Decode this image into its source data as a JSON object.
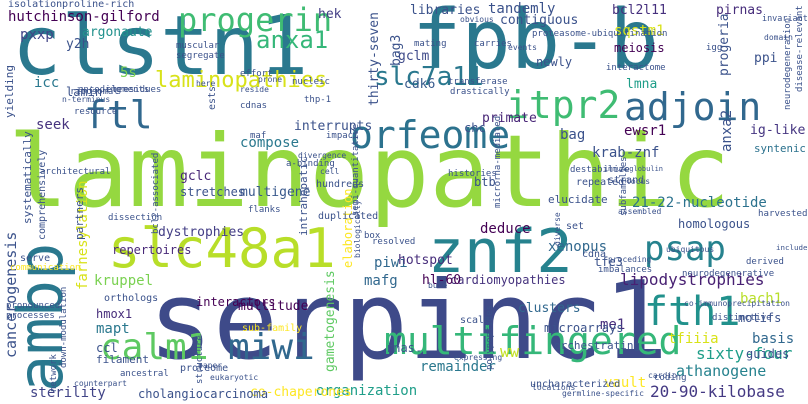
{
  "words": [
    {
      "text": "laminopathic",
      "color": "#95d840"
    },
    {
      "text": "serpinc1",
      "color": "#3e4a89"
    },
    {
      "text": "clstn1",
      "color": "#2a788e"
    },
    {
      "text": "fpb-b",
      "color": "#2a788e"
    },
    {
      "text": "slc48a1",
      "color": "#b8de29"
    },
    {
      "text": "znf2",
      "color": "#26828e"
    },
    {
      "text": "ambp",
      "color": "#2a788e"
    },
    {
      "text": "multifingered",
      "color": "#35b779"
    },
    {
      "text": "adjoin",
      "color": "#31688e"
    },
    {
      "text": "orfeome",
      "color": "#2c728e"
    },
    {
      "text": "itpr2",
      "color": "#3fbc73"
    },
    {
      "text": "ftl",
      "color": "#31688e"
    },
    {
      "text": "fth1",
      "color": "#21918c"
    },
    {
      "text": "calm1",
      "color": "#5ec962"
    },
    {
      "text": "miwi",
      "color": "#31688e"
    },
    {
      "text": "psap",
      "color": "#26828e"
    },
    {
      "text": "progerin",
      "color": "#3fbc73"
    },
    {
      "text": "anxa1",
      "color": "#35b779"
    },
    {
      "text": "laminopathies",
      "color": "#d8e219"
    },
    {
      "text": "slc7a11",
      "color": "#2a788e"
    },
    {
      "text": "hutchinson-gilford",
      "color": "#440154"
    },
    {
      "text": "argonaute",
      "color": "#21918c"
    },
    {
      "text": "cancerogenesis",
      "color": "#3b528b"
    },
    {
      "text": "farnesylation",
      "color": "#d8e219"
    },
    {
      "text": "lipodystrophies",
      "color": "#482173"
    },
    {
      "text": "sixty-four",
      "color": "#1f9e89"
    },
    {
      "text": "athanogene",
      "color": "#26828e"
    },
    {
      "text": "20-90-kilobase",
      "color": "#443983"
    },
    {
      "text": "21-22-nucleotide",
      "color": "#2c728e"
    },
    {
      "text": "dystrophies",
      "color": "#433e85"
    },
    {
      "text": "repertoires",
      "color": "#482878"
    },
    {
      "text": "remainder",
      "color": "#2a788e"
    },
    {
      "text": "organization",
      "color": "#1f9e89"
    },
    {
      "text": "co-chaperones",
      "color": "#fde725"
    },
    {
      "text": "cholangiocarcinoma",
      "color": "#3b528b"
    },
    {
      "text": "gametogenesis",
      "color": "#5ec962"
    },
    {
      "text": "sterility",
      "color": "#414487"
    },
    {
      "text": "kruppel",
      "color": "#7ad151"
    },
    {
      "text": "hmox1",
      "color": "#472d7b"
    },
    {
      "text": "mapt",
      "color": "#2a788e"
    },
    {
      "text": "ccl",
      "color": "#3b528b"
    },
    {
      "text": "mafg",
      "color": "#31688e"
    },
    {
      "text": "piwi",
      "color": "#31688e"
    },
    {
      "text": "xenopus",
      "color": "#31688e"
    },
    {
      "text": "deduce",
      "color": "#440154"
    },
    {
      "text": "cardiomyopathies",
      "color": "#46337e"
    },
    {
      "text": "vault",
      "color": "#fde725"
    },
    {
      "text": "me1",
      "color": "#472d7b"
    },
    {
      "text": "clusters",
      "color": "#31688e"
    },
    {
      "text": "bach1",
      "color": "#b8de29"
    },
    {
      "text": "tfiiia",
      "color": "#d8e219"
    },
    {
      "text": "basis",
      "color": "#31688e"
    },
    {
      "text": "tandemly",
      "color": "#3b528b"
    },
    {
      "text": "gclm",
      "color": "#3e4a89"
    },
    {
      "text": "cdk6",
      "color": "#375a8c"
    },
    {
      "text": "bcl2l11",
      "color": "#46307e"
    },
    {
      "text": "pirnas",
      "color": "#472d7b"
    },
    {
      "text": "sqstm1",
      "color": "#d8e219"
    },
    {
      "text": "meiosis",
      "color": "#440154"
    },
    {
      "text": "lmna",
      "color": "#1f9e89"
    },
    {
      "text": "ewsr1",
      "color": "#440154"
    },
    {
      "text": "krab-znf",
      "color": "#3b528b"
    },
    {
      "text": "ig-like",
      "color": "#453581"
    },
    {
      "text": "syntenic",
      "color": "#2c728e"
    },
    {
      "text": "compose",
      "color": "#2a788e"
    },
    {
      "text": "multigene",
      "color": "#38588c"
    },
    {
      "text": "bag",
      "color": "#3b528b"
    },
    {
      "text": "primate",
      "color": "#482677"
    },
    {
      "text": "seek",
      "color": "#46337e"
    },
    {
      "text": "gclc",
      "color": "#482878"
    },
    {
      "text": "stretches",
      "color": "#3b528b"
    },
    {
      "text": "icc",
      "color": "#2a788e"
    },
    {
      "text": "5s",
      "color": "#7ad151"
    },
    {
      "text": "y2h",
      "color": "#3b528b"
    },
    {
      "text": "pxxp",
      "color": "#414487"
    },
    {
      "text": "hek",
      "color": "#433e85"
    },
    {
      "text": "bag3",
      "color": "#3b528b"
    },
    {
      "text": "thirty-seven",
      "color": "#3b528b"
    },
    {
      "text": "libraries",
      "color": "#3b528b"
    },
    {
      "text": "contiguous",
      "color": "#3b528b"
    },
    {
      "text": "homologous",
      "color": "#3b528b"
    },
    {
      "text": "anxa2",
      "color": "#3b528b"
    },
    {
      "text": "hotspot",
      "color": "#472d7b"
    },
    {
      "text": "hl-60",
      "color": "#440154"
    },
    {
      "text": "microarrays",
      "color": "#3b528b"
    },
    {
      "text": "multitude",
      "color": "#440154"
    },
    {
      "text": "interactors",
      "color": "#440154"
    },
    {
      "text": "rnas",
      "color": "#3b528b"
    },
    {
      "text": "ww",
      "color": "#c2df23"
    },
    {
      "text": "progeria",
      "color": "#3b528b"
    },
    {
      "text": "ppi",
      "color": "#3b528b"
    },
    {
      "text": "btb",
      "color": "#3b528b"
    },
    {
      "text": "lamin",
      "color": "#3b528b"
    },
    {
      "text": "newly",
      "color": "#3b528b"
    },
    {
      "text": "interrupts",
      "color": "#3b528b"
    },
    {
      "text": "elaboration",
      "color": "#fde725"
    },
    {
      "text": "chc",
      "color": "#3b528b"
    },
    {
      "text": "tfe3",
      "color": "#3b528b"
    },
    {
      "text": "motifs",
      "color": "#3b528b"
    },
    {
      "text": "guides",
      "color": "#3b528b"
    },
    {
      "text": "orchestrating",
      "color": "#3b528b"
    },
    {
      "text": "proteasome-ubiquitination",
      "color": "#3b528b"
    },
    {
      "text": "isolation",
      "color": "#3b528b"
    },
    {
      "text": "proline-rich",
      "color": "#3b528b"
    },
    {
      "text": "elements",
      "color": "#3b528b"
    },
    {
      "text": "encoding",
      "color": "#3b528b"
    },
    {
      "text": "harvested",
      "color": "#3b528b"
    },
    {
      "text": "intrahepatic",
      "color": "#3b528b"
    },
    {
      "text": "partners",
      "color": "#3b528b"
    },
    {
      "text": "architectural",
      "color": "#3b528b"
    },
    {
      "text": "filament",
      "color": "#3b528b"
    },
    {
      "text": "sub-family",
      "color": "#fde725"
    },
    {
      "text": "uncharacterized",
      "color": "#3b528b"
    },
    {
      "text": "scale",
      "color": "#3b528b"
    },
    {
      "text": "elucidate",
      "color": "#3b528b"
    },
    {
      "text": "repeated",
      "color": "#3b528b"
    },
    {
      "text": "strand",
      "color": "#3b528b"
    },
    {
      "text": "histories",
      "color": "#3b528b"
    },
    {
      "text": "hundreds",
      "color": "#3b528b"
    },
    {
      "text": "set",
      "color": "#3b528b"
    },
    {
      "text": "cdna",
      "color": "#3b528b"
    },
    {
      "text": "duplicated",
      "color": "#3b528b"
    },
    {
      "text": "resolved",
      "color": "#3b528b"
    },
    {
      "text": "systematically",
      "color": "#3b528b"
    },
    {
      "text": "comprehensively",
      "color": "#3b528b"
    },
    {
      "text": "serve",
      "color": "#3b528b"
    },
    {
      "text": "orthologs",
      "color": "#3b528b"
    },
    {
      "text": "proteome",
      "color": "#3b528b"
    },
    {
      "text": "ancestral",
      "color": "#3b528b"
    },
    {
      "text": "coding",
      "color": "#3b528b"
    },
    {
      "text": "derived",
      "color": "#3b528b"
    },
    {
      "text": "communication",
      "color": "#fde725"
    },
    {
      "text": "structure",
      "color": "#3b528b"
    },
    {
      "text": "polypeptides",
      "color": "#3b528b"
    },
    {
      "text": "transferase",
      "color": "#3b528b"
    },
    {
      "text": "drastically",
      "color": "#3b528b"
    },
    {
      "text": "carries",
      "color": "#3b528b"
    },
    {
      "text": "mating",
      "color": "#3b528b"
    },
    {
      "text": "events",
      "color": "#3b528b"
    },
    {
      "text": "interactome",
      "color": "#3b528b"
    },
    {
      "text": "neurodegeneration",
      "color": "#3b528b"
    },
    {
      "text": "disease-relevant",
      "color": "#3b528b"
    },
    {
      "text": "invariant",
      "color": "#3b528b"
    },
    {
      "text": "obvious",
      "color": "#3b528b"
    },
    {
      "text": "segregate",
      "color": "#3b528b"
    },
    {
      "text": "muscular",
      "color": "#3b528b"
    },
    {
      "text": "ribosomal",
      "color": "#3b528b"
    },
    {
      "text": "n-terminus",
      "color": "#3b528b"
    },
    {
      "text": "resource",
      "color": "#3b528b"
    },
    {
      "text": "residues",
      "color": "#3b528b"
    },
    {
      "text": "ests",
      "color": "#3b528b"
    },
    {
      "text": "cdnas",
      "color": "#3b528b"
    },
    {
      "text": "nucleic",
      "color": "#3b528b"
    },
    {
      "text": "effort",
      "color": "#3b528b"
    },
    {
      "text": "thp-1",
      "color": "#3b528b"
    },
    {
      "text": "impact",
      "color": "#3b528b"
    },
    {
      "text": "divergence",
      "color": "#3b528b"
    },
    {
      "text": "a-binding",
      "color": "#3b528b"
    },
    {
      "text": "semi-quantitative",
      "color": "#3b528b"
    },
    {
      "text": "flanks",
      "color": "#3b528b"
    },
    {
      "text": "dissection",
      "color": "#3b528b"
    },
    {
      "text": "bcl2-associated",
      "color": "#3b528b"
    },
    {
      "text": "box",
      "color": "#3b528b"
    },
    {
      "text": "imbalances",
      "color": "#3b528b"
    },
    {
      "text": "destabilize",
      "color": "#3b528b"
    },
    {
      "text": "immunoglobulin",
      "color": "#3b528b"
    },
    {
      "text": "microrna-mediated",
      "color": "#3b528b"
    },
    {
      "text": "include",
      "color": "#3b528b"
    },
    {
      "text": "co-immunoprecipitation",
      "color": "#3b528b"
    },
    {
      "text": "distinctive",
      "color": "#3b528b"
    },
    {
      "text": "neurodegenerative",
      "color": "#3b528b"
    },
    {
      "text": "subfamilies",
      "color": "#3b528b"
    },
    {
      "text": "assembled",
      "color": "#3b528b"
    },
    {
      "text": "pronounced",
      "color": "#3b528b"
    },
    {
      "text": "processes",
      "color": "#3b528b"
    },
    {
      "text": "network",
      "color": "#3b528b"
    },
    {
      "text": "down-modulation",
      "color": "#3b528b"
    },
    {
      "text": "counterpart",
      "color": "#3b528b"
    },
    {
      "text": "eukaryotic",
      "color": "#3b528b"
    },
    {
      "text": "germline-specific",
      "color": "#3b528b"
    },
    {
      "text": "yielding",
      "color": "#3b528b"
    },
    {
      "text": "maf",
      "color": "#3b528b"
    },
    {
      "text": "igg",
      "color": "#3b528b"
    },
    {
      "text": "bule",
      "color": "#3b528b"
    },
    {
      "text": "domain",
      "color": "#3b528b"
    },
    {
      "text": "proceding",
      "color": "#3b528b"
    },
    {
      "text": "biologically",
      "color": "#3b528b"
    },
    {
      "text": "diverse",
      "color": "#3b528b"
    },
    {
      "text": "here",
      "color": "#3b528b"
    },
    {
      "text": "locus",
      "color": "#3b528b"
    },
    {
      "text": "prone",
      "color": "#3b528b"
    },
    {
      "text": "reside",
      "color": "#3b528b"
    },
    {
      "text": "paper",
      "color": "#3b528b"
    },
    {
      "text": "locations",
      "color": "#3b528b"
    },
    {
      "text": "cell",
      "color": "#3b528b"
    },
    {
      "text": "expressing",
      "color": "#3b528b"
    },
    {
      "text": "ubiquitous",
      "color": "#3b528b"
    },
    {
      "text": "cardio",
      "color": "#3b528b"
    }
  ]
}
